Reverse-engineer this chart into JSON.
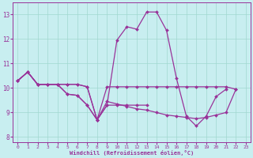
{
  "xlabel": "Windchill (Refroidissement éolien,°C)",
  "background_color": "#c8eef0",
  "grid_color": "#a0d8d0",
  "line_color": "#993399",
  "xlim": [
    -0.5,
    23.5
  ],
  "ylim": [
    7.8,
    13.5
  ],
  "xticks": [
    0,
    1,
    2,
    3,
    4,
    5,
    6,
    7,
    8,
    9,
    10,
    11,
    12,
    13,
    14,
    15,
    16,
    17,
    18,
    19,
    20,
    21,
    22,
    23
  ],
  "yticks": [
    8,
    9,
    10,
    11,
    12,
    13
  ],
  "series": [
    {
      "x": [
        0,
        1,
        2,
        3,
        4,
        5,
        6,
        7,
        8,
        9,
        10,
        11,
        12,
        13,
        14,
        15,
        16,
        17,
        18,
        19,
        20,
        21
      ],
      "y": [
        10.3,
        10.65,
        10.15,
        10.15,
        10.15,
        10.15,
        10.15,
        10.05,
        8.7,
        9.3,
        11.95,
        12.5,
        12.4,
        13.1,
        13.1,
        12.35,
        10.4,
        8.85,
        8.45,
        8.85,
        9.65,
        9.95
      ]
    },
    {
      "x": [
        0,
        1,
        2,
        3,
        4,
        5,
        6,
        7,
        8,
        9,
        10,
        11,
        12,
        13,
        14,
        15,
        16,
        17,
        18,
        19,
        20,
        21,
        22
      ],
      "y": [
        10.3,
        10.65,
        10.15,
        10.15,
        10.15,
        10.15,
        10.15,
        10.05,
        8.7,
        10.05,
        10.05,
        10.05,
        10.05,
        10.05,
        10.05,
        10.05,
        10.05,
        10.05,
        10.05,
        10.05,
        10.05,
        10.05,
        9.95
      ]
    },
    {
      "x": [
        0,
        1,
        2,
        3,
        4,
        5,
        6,
        7,
        8,
        9,
        10,
        11,
        12,
        13
      ],
      "y": [
        10.3,
        10.65,
        10.15,
        10.15,
        10.15,
        9.75,
        9.7,
        9.3,
        8.7,
        9.3,
        9.3,
        9.3,
        9.3,
        9.3
      ]
    },
    {
      "x": [
        0,
        1,
        2,
        3,
        4,
        5,
        6,
        7,
        8,
        9,
        10,
        11,
        12,
        13,
        14,
        15,
        16,
        17,
        18,
        19,
        20,
        21,
        22
      ],
      "y": [
        10.3,
        10.65,
        10.15,
        10.15,
        10.15,
        9.75,
        9.7,
        9.3,
        8.7,
        9.45,
        9.35,
        9.25,
        9.15,
        9.1,
        9.0,
        8.9,
        8.85,
        8.8,
        8.75,
        8.8,
        8.9,
        9.0,
        9.95
      ]
    }
  ]
}
